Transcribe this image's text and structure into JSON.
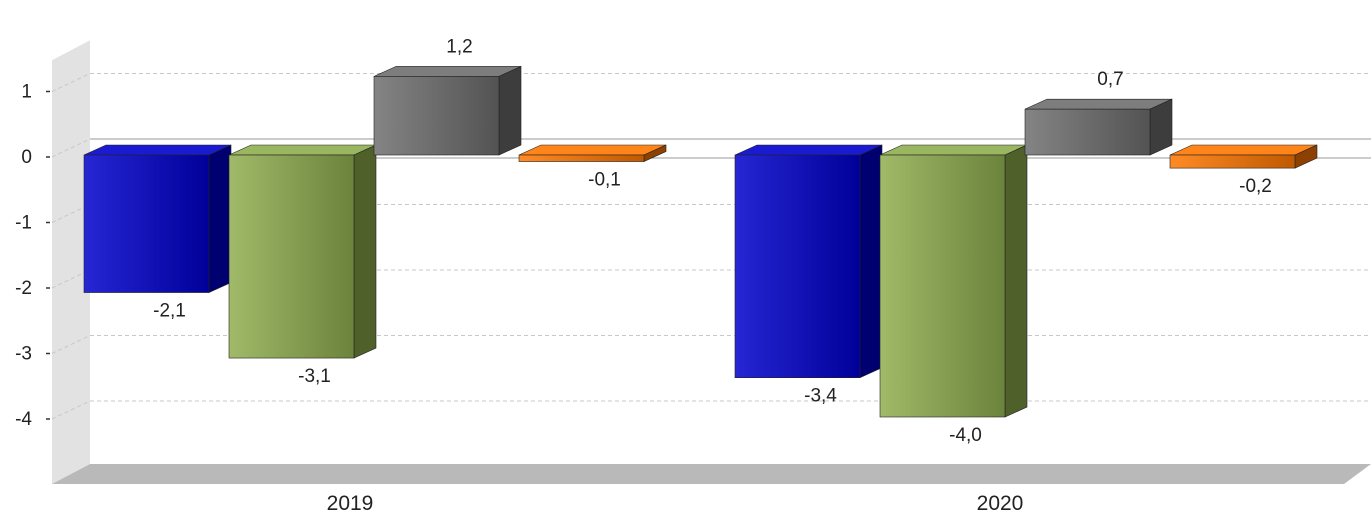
{
  "chart_data": {
    "type": "bar",
    "title": "",
    "xlabel": "",
    "ylabel": "",
    "categories": [
      "2019",
      "2020"
    ],
    "series": [
      {
        "values": [
          -2.1,
          -3.4
        ],
        "color": "#0000cc"
      },
      {
        "values": [
          -3.1,
          -4.0
        ],
        "color": "#8fae4f"
      },
      {
        "values": [
          1.2,
          0.7
        ],
        "color": "#6e6e6e"
      },
      {
        "values": [
          -0.1,
          -0.2
        ],
        "color": "#ff7700"
      }
    ],
    "value_labels": [
      [
        "-2,1",
        "-3,4"
      ],
      [
        "-3,1",
        "-4,0"
      ],
      [
        "1,2",
        "0,7"
      ],
      [
        "-0,1",
        "-0,2"
      ]
    ],
    "y_ticks": [
      1,
      0,
      -1,
      -2,
      -3,
      -4
    ],
    "y_tick_labels": [
      "1",
      "0",
      "-1",
      "-2",
      "-3",
      "-4"
    ],
    "ylim": [
      -4.8,
      1.6
    ],
    "grid": true,
    "style": "3d-bar"
  }
}
